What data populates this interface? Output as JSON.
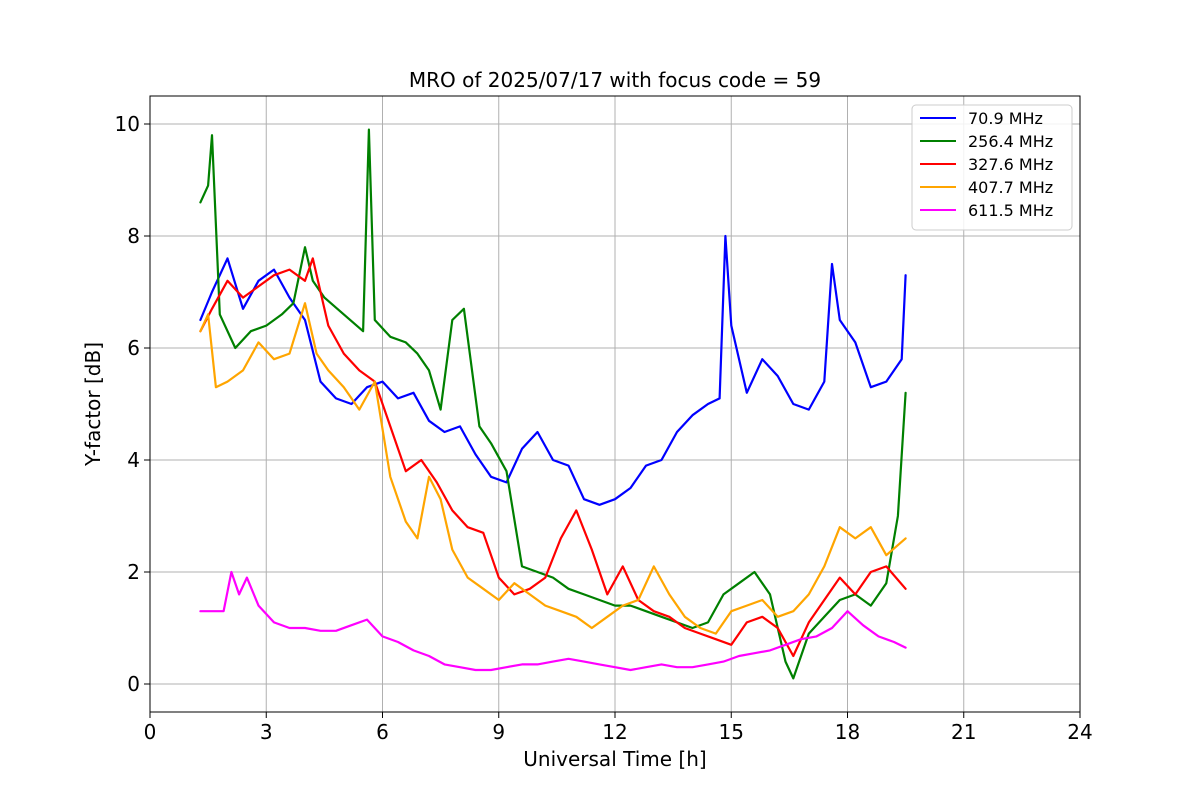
{
  "chart_data": {
    "type": "line",
    "title": "MRO of 2025/07/17 with focus code = 59",
    "xlabel": "Universal Time [h]",
    "ylabel": "Y-factor [dB]",
    "xlim": [
      0,
      24
    ],
    "ylim": [
      -0.5,
      10.5
    ],
    "xticks": [
      0,
      3,
      6,
      9,
      12,
      15,
      18,
      21,
      24
    ],
    "yticks": [
      0,
      2,
      4,
      6,
      8,
      10
    ],
    "grid": true,
    "legend_position": "top-right",
    "series": [
      {
        "name": " 70.9 MHz",
        "color": "#0000ff",
        "x": [
          1.3,
          1.6,
          2.0,
          2.4,
          2.8,
          3.2,
          3.6,
          4.0,
          4.4,
          4.8,
          5.2,
          5.6,
          6.0,
          6.4,
          6.8,
          7.2,
          7.6,
          8.0,
          8.4,
          8.8,
          9.2,
          9.6,
          10.0,
          10.4,
          10.8,
          11.2,
          11.6,
          12.0,
          12.4,
          12.8,
          13.2,
          13.6,
          14.0,
          14.4,
          14.7,
          14.85,
          15.0,
          15.4,
          15.8,
          16.2,
          16.6,
          17.0,
          17.4,
          17.6,
          17.8,
          18.2,
          18.6,
          19.0,
          19.4,
          19.5
        ],
        "values": [
          6.5,
          7.0,
          7.6,
          6.7,
          7.2,
          7.4,
          6.9,
          6.5,
          5.4,
          5.1,
          5.0,
          5.3,
          5.4,
          5.1,
          5.2,
          4.7,
          4.5,
          4.6,
          4.1,
          3.7,
          3.6,
          4.2,
          4.5,
          4.0,
          3.9,
          3.3,
          3.2,
          3.3,
          3.5,
          3.9,
          4.0,
          4.5,
          4.8,
          5.0,
          5.1,
          8.0,
          6.4,
          5.2,
          5.8,
          5.5,
          5.0,
          4.9,
          5.4,
          7.5,
          6.5,
          6.1,
          5.3,
          5.4,
          5.8,
          7.3
        ]
      },
      {
        "name": "256.4 MHz",
        "color": "#008000",
        "x": [
          1.3,
          1.5,
          1.6,
          1.8,
          2.2,
          2.6,
          3.0,
          3.4,
          3.7,
          4.0,
          4.2,
          4.5,
          5.0,
          5.5,
          5.65,
          5.8,
          6.2,
          6.6,
          6.9,
          7.2,
          7.5,
          7.8,
          8.1,
          8.5,
          8.8,
          9.2,
          9.6,
          10.0,
          10.4,
          10.8,
          11.2,
          11.6,
          12.0,
          12.4,
          12.8,
          13.2,
          13.6,
          14.0,
          14.4,
          14.8,
          15.2,
          15.6,
          16.0,
          16.4,
          16.6,
          17.0,
          17.4,
          17.8,
          18.2,
          18.6,
          19.0,
          19.3,
          19.5
        ],
        "values": [
          8.6,
          8.9,
          9.8,
          6.6,
          6.0,
          6.3,
          6.4,
          6.6,
          6.8,
          7.8,
          7.2,
          6.9,
          6.6,
          6.3,
          9.9,
          6.5,
          6.2,
          6.1,
          5.9,
          5.6,
          4.9,
          6.5,
          6.7,
          4.6,
          4.3,
          3.8,
          2.1,
          2.0,
          1.9,
          1.7,
          1.6,
          1.5,
          1.4,
          1.4,
          1.3,
          1.2,
          1.1,
          1.0,
          1.1,
          1.6,
          1.8,
          2.0,
          1.6,
          0.4,
          0.1,
          0.9,
          1.2,
          1.5,
          1.6,
          1.4,
          1.8,
          3.0,
          5.2
        ]
      },
      {
        "name": "327.6 MHz",
        "color": "#ff0000",
        "x": [
          1.3,
          1.6,
          2.0,
          2.4,
          2.8,
          3.2,
          3.6,
          4.0,
          4.2,
          4.6,
          5.0,
          5.4,
          5.8,
          6.2,
          6.6,
          7.0,
          7.4,
          7.8,
          8.2,
          8.6,
          9.0,
          9.4,
          9.8,
          10.2,
          10.6,
          11.0,
          11.4,
          11.8,
          12.2,
          12.6,
          13.0,
          13.4,
          13.8,
          14.2,
          14.6,
          15.0,
          15.4,
          15.8,
          16.2,
          16.6,
          17.0,
          17.4,
          17.8,
          18.2,
          18.6,
          19.0,
          19.5
        ],
        "values": [
          6.3,
          6.7,
          7.2,
          6.9,
          7.1,
          7.3,
          7.4,
          7.2,
          7.6,
          6.4,
          5.9,
          5.6,
          5.4,
          4.6,
          3.8,
          4.0,
          3.6,
          3.1,
          2.8,
          2.7,
          1.9,
          1.6,
          1.7,
          1.9,
          2.6,
          3.1,
          2.4,
          1.6,
          2.1,
          1.5,
          1.3,
          1.2,
          1.0,
          0.9,
          0.8,
          0.7,
          1.1,
          1.2,
          1.0,
          0.5,
          1.1,
          1.5,
          1.9,
          1.6,
          2.0,
          2.1,
          1.7
        ]
      },
      {
        "name": "407.7 MHz",
        "color": "#ffa500",
        "x": [
          1.3,
          1.5,
          1.7,
          2.0,
          2.4,
          2.8,
          3.2,
          3.6,
          4.0,
          4.3,
          4.6,
          5.0,
          5.4,
          5.8,
          6.2,
          6.6,
          6.9,
          7.2,
          7.5,
          7.8,
          8.2,
          8.6,
          9.0,
          9.4,
          9.8,
          10.2,
          10.6,
          11.0,
          11.4,
          11.8,
          12.2,
          12.6,
          13.0,
          13.4,
          13.8,
          14.2,
          14.6,
          15.0,
          15.4,
          15.8,
          16.2,
          16.6,
          17.0,
          17.4,
          17.8,
          18.2,
          18.6,
          19.0,
          19.5
        ],
        "values": [
          6.3,
          6.6,
          5.3,
          5.4,
          5.6,
          6.1,
          5.8,
          5.9,
          6.8,
          5.9,
          5.6,
          5.3,
          4.9,
          5.4,
          3.7,
          2.9,
          2.6,
          3.7,
          3.3,
          2.4,
          1.9,
          1.7,
          1.5,
          1.8,
          1.6,
          1.4,
          1.3,
          1.2,
          1.0,
          1.2,
          1.4,
          1.5,
          2.1,
          1.6,
          1.2,
          1.0,
          0.9,
          1.3,
          1.4,
          1.5,
          1.2,
          1.3,
          1.6,
          2.1,
          2.8,
          2.6,
          2.8,
          2.3,
          2.6
        ]
      },
      {
        "name": "611.5 MHz",
        "color": "#ff00ff",
        "x": [
          1.3,
          1.6,
          1.9,
          2.1,
          2.3,
          2.5,
          2.8,
          3.2,
          3.6,
          4.0,
          4.4,
          4.8,
          5.2,
          5.6,
          6.0,
          6.4,
          6.8,
          7.2,
          7.6,
          8.0,
          8.4,
          8.8,
          9.2,
          9.6,
          10.0,
          10.4,
          10.8,
          11.2,
          11.6,
          12.0,
          12.4,
          12.8,
          13.2,
          13.6,
          14.0,
          14.4,
          14.8,
          15.2,
          15.6,
          16.0,
          16.4,
          16.8,
          17.2,
          17.6,
          18.0,
          18.4,
          18.8,
          19.2,
          19.5
        ],
        "values": [
          1.3,
          1.3,
          1.3,
          2.0,
          1.6,
          1.9,
          1.4,
          1.1,
          1.0,
          1.0,
          0.95,
          0.95,
          1.05,
          1.15,
          0.85,
          0.75,
          0.6,
          0.5,
          0.35,
          0.3,
          0.25,
          0.25,
          0.3,
          0.35,
          0.35,
          0.4,
          0.45,
          0.4,
          0.35,
          0.3,
          0.25,
          0.3,
          0.35,
          0.3,
          0.3,
          0.35,
          0.4,
          0.5,
          0.55,
          0.6,
          0.7,
          0.8,
          0.85,
          1.0,
          1.3,
          1.05,
          0.85,
          0.75,
          0.65
        ]
      }
    ]
  }
}
